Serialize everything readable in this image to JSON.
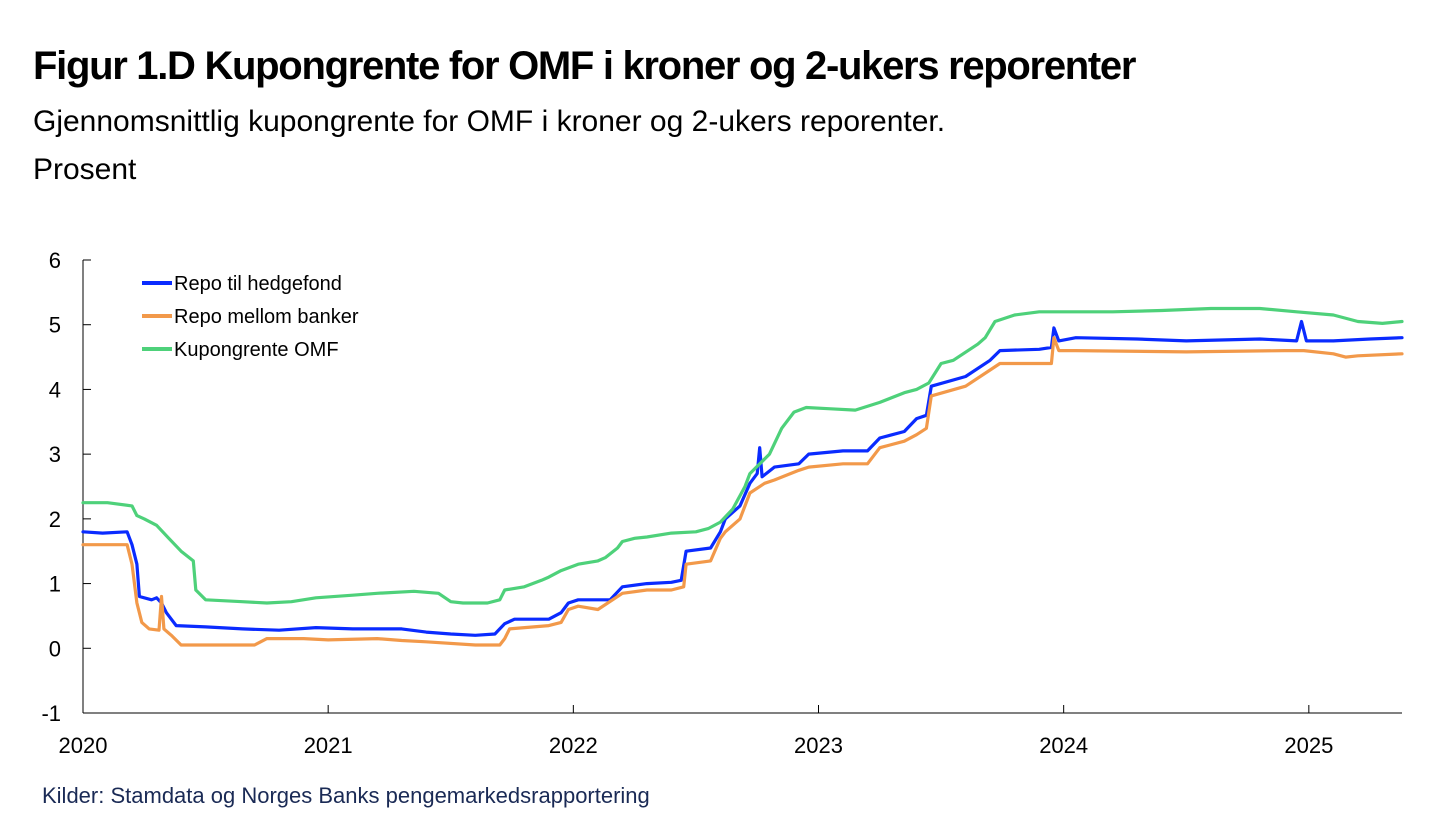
{
  "title": "Figur 1.D Kupongrente for OMF i kroner og 2-ukers reporenter",
  "subtitle_line1": "Gjennomsnittlig kupongrente for OMF i kroner og 2-ukers reporenter.",
  "subtitle_line2": "Prosent",
  "source": "Kilder: Stamdata og Norges Banks pengemarkedsrapportering",
  "chart_data": {
    "type": "line",
    "title": "Figur 1.D Kupongrente for OMF i kroner og 2-ukers reporenter",
    "xlabel": "",
    "ylabel": "Prosent",
    "xlim": [
      2020.0,
      2025.38
    ],
    "ylim": [
      -1,
      6
    ],
    "yticks": [
      "6",
      "5",
      "4",
      "3",
      "2",
      "1",
      "0",
      "-1"
    ],
    "xticks": [
      "2020",
      "2021",
      "2022",
      "2023",
      "2024",
      "2025"
    ],
    "legend": "top-left",
    "grid": false,
    "series": [
      {
        "name": "Repo til hedgefond",
        "color": "#0a2bff",
        "points": [
          [
            2020.0,
            1.8
          ],
          [
            2020.08,
            1.78
          ],
          [
            2020.18,
            1.8
          ],
          [
            2020.2,
            1.6
          ],
          [
            2020.22,
            1.3
          ],
          [
            2020.23,
            0.8
          ],
          [
            2020.28,
            0.75
          ],
          [
            2020.3,
            0.78
          ],
          [
            2020.32,
            0.7
          ],
          [
            2020.34,
            0.55
          ],
          [
            2020.36,
            0.45
          ],
          [
            2020.38,
            0.35
          ],
          [
            2020.5,
            0.33
          ],
          [
            2020.65,
            0.3
          ],
          [
            2020.8,
            0.28
          ],
          [
            2020.95,
            0.32
          ],
          [
            2021.1,
            0.3
          ],
          [
            2021.3,
            0.3
          ],
          [
            2021.4,
            0.25
          ],
          [
            2021.5,
            0.22
          ],
          [
            2021.6,
            0.2
          ],
          [
            2021.68,
            0.22
          ],
          [
            2021.72,
            0.38
          ],
          [
            2021.76,
            0.45
          ],
          [
            2021.9,
            0.45
          ],
          [
            2021.95,
            0.55
          ],
          [
            2021.98,
            0.7
          ],
          [
            2022.02,
            0.75
          ],
          [
            2022.15,
            0.75
          ],
          [
            2022.2,
            0.95
          ],
          [
            2022.3,
            1.0
          ],
          [
            2022.4,
            1.02
          ],
          [
            2022.44,
            1.05
          ],
          [
            2022.46,
            1.5
          ],
          [
            2022.56,
            1.55
          ],
          [
            2022.6,
            1.8
          ],
          [
            2022.62,
            2.0
          ],
          [
            2022.68,
            2.2
          ],
          [
            2022.72,
            2.55
          ],
          [
            2022.75,
            2.7
          ],
          [
            2022.76,
            3.1
          ],
          [
            2022.77,
            2.65
          ],
          [
            2022.82,
            2.8
          ],
          [
            2022.92,
            2.85
          ],
          [
            2022.96,
            3.0
          ],
          [
            2023.1,
            3.05
          ],
          [
            2023.2,
            3.05
          ],
          [
            2023.25,
            3.25
          ],
          [
            2023.35,
            3.35
          ],
          [
            2023.4,
            3.55
          ],
          [
            2023.44,
            3.6
          ],
          [
            2023.46,
            4.05
          ],
          [
            2023.6,
            4.2
          ],
          [
            2023.7,
            4.45
          ],
          [
            2023.74,
            4.6
          ],
          [
            2023.9,
            4.62
          ],
          [
            2023.95,
            4.65
          ],
          [
            2023.96,
            4.95
          ],
          [
            2023.98,
            4.75
          ],
          [
            2024.05,
            4.8
          ],
          [
            2024.3,
            4.78
          ],
          [
            2024.5,
            4.75
          ],
          [
            2024.8,
            4.78
          ],
          [
            2024.95,
            4.75
          ],
          [
            2024.97,
            5.05
          ],
          [
            2024.99,
            4.75
          ],
          [
            2025.1,
            4.75
          ],
          [
            2025.25,
            4.78
          ],
          [
            2025.38,
            4.8
          ]
        ]
      },
      {
        "name": "Repo mellom banker",
        "color": "#f2994a",
        "points": [
          [
            2020.0,
            1.6
          ],
          [
            2020.1,
            1.6
          ],
          [
            2020.18,
            1.6
          ],
          [
            2020.2,
            1.3
          ],
          [
            2020.22,
            0.7
          ],
          [
            2020.24,
            0.4
          ],
          [
            2020.27,
            0.3
          ],
          [
            2020.31,
            0.28
          ],
          [
            2020.32,
            0.8
          ],
          [
            2020.33,
            0.3
          ],
          [
            2020.36,
            0.2
          ],
          [
            2020.4,
            0.05
          ],
          [
            2020.6,
            0.05
          ],
          [
            2020.7,
            0.05
          ],
          [
            2020.75,
            0.15
          ],
          [
            2020.9,
            0.15
          ],
          [
            2021.0,
            0.13
          ],
          [
            2021.2,
            0.15
          ],
          [
            2021.3,
            0.12
          ],
          [
            2021.4,
            0.1
          ],
          [
            2021.6,
            0.05
          ],
          [
            2021.7,
            0.05
          ],
          [
            2021.72,
            0.15
          ],
          [
            2021.74,
            0.3
          ],
          [
            2021.9,
            0.35
          ],
          [
            2021.95,
            0.4
          ],
          [
            2021.98,
            0.6
          ],
          [
            2022.02,
            0.65
          ],
          [
            2022.1,
            0.6
          ],
          [
            2022.2,
            0.85
          ],
          [
            2022.3,
            0.9
          ],
          [
            2022.4,
            0.9
          ],
          [
            2022.45,
            0.95
          ],
          [
            2022.46,
            1.3
          ],
          [
            2022.56,
            1.35
          ],
          [
            2022.6,
            1.7
          ],
          [
            2022.62,
            1.8
          ],
          [
            2022.68,
            2.0
          ],
          [
            2022.72,
            2.4
          ],
          [
            2022.78,
            2.55
          ],
          [
            2022.82,
            2.6
          ],
          [
            2022.92,
            2.75
          ],
          [
            2022.96,
            2.8
          ],
          [
            2023.1,
            2.85
          ],
          [
            2023.2,
            2.85
          ],
          [
            2023.25,
            3.1
          ],
          [
            2023.35,
            3.2
          ],
          [
            2023.4,
            3.3
          ],
          [
            2023.44,
            3.4
          ],
          [
            2023.46,
            3.9
          ],
          [
            2023.6,
            4.05
          ],
          [
            2023.7,
            4.3
          ],
          [
            2023.74,
            4.4
          ],
          [
            2023.9,
            4.4
          ],
          [
            2023.95,
            4.4
          ],
          [
            2023.96,
            4.8
          ],
          [
            2023.98,
            4.6
          ],
          [
            2024.05,
            4.6
          ],
          [
            2024.5,
            4.58
          ],
          [
            2024.9,
            4.6
          ],
          [
            2024.98,
            4.6
          ],
          [
            2025.1,
            4.55
          ],
          [
            2025.15,
            4.5
          ],
          [
            2025.2,
            4.52
          ],
          [
            2025.38,
            4.55
          ]
        ]
      },
      {
        "name": "Kupongrente OMF",
        "color": "#4ed17a",
        "points": [
          [
            2020.0,
            2.25
          ],
          [
            2020.1,
            2.25
          ],
          [
            2020.2,
            2.2
          ],
          [
            2020.22,
            2.05
          ],
          [
            2020.25,
            2.0
          ],
          [
            2020.3,
            1.9
          ],
          [
            2020.35,
            1.7
          ],
          [
            2020.4,
            1.5
          ],
          [
            2020.45,
            1.35
          ],
          [
            2020.46,
            0.9
          ],
          [
            2020.5,
            0.75
          ],
          [
            2020.65,
            0.72
          ],
          [
            2020.75,
            0.7
          ],
          [
            2020.85,
            0.72
          ],
          [
            2020.95,
            0.78
          ],
          [
            2021.1,
            0.82
          ],
          [
            2021.2,
            0.85
          ],
          [
            2021.35,
            0.88
          ],
          [
            2021.45,
            0.85
          ],
          [
            2021.5,
            0.72
          ],
          [
            2021.55,
            0.7
          ],
          [
            2021.65,
            0.7
          ],
          [
            2021.7,
            0.75
          ],
          [
            2021.72,
            0.9
          ],
          [
            2021.8,
            0.95
          ],
          [
            2021.87,
            1.05
          ],
          [
            2021.9,
            1.1
          ],
          [
            2021.95,
            1.2
          ],
          [
            2022.02,
            1.3
          ],
          [
            2022.1,
            1.35
          ],
          [
            2022.13,
            1.4
          ],
          [
            2022.18,
            1.55
          ],
          [
            2022.2,
            1.65
          ],
          [
            2022.25,
            1.7
          ],
          [
            2022.3,
            1.72
          ],
          [
            2022.4,
            1.78
          ],
          [
            2022.5,
            1.8
          ],
          [
            2022.55,
            1.85
          ],
          [
            2022.6,
            1.95
          ],
          [
            2022.65,
            2.15
          ],
          [
            2022.7,
            2.5
          ],
          [
            2022.72,
            2.7
          ],
          [
            2022.8,
            3.0
          ],
          [
            2022.85,
            3.4
          ],
          [
            2022.9,
            3.65
          ],
          [
            2022.95,
            3.72
          ],
          [
            2023.05,
            3.7
          ],
          [
            2023.15,
            3.68
          ],
          [
            2023.25,
            3.8
          ],
          [
            2023.35,
            3.95
          ],
          [
            2023.4,
            4.0
          ],
          [
            2023.45,
            4.1
          ],
          [
            2023.5,
            4.4
          ],
          [
            2023.55,
            4.45
          ],
          [
            2023.65,
            4.7
          ],
          [
            2023.68,
            4.8
          ],
          [
            2023.72,
            5.05
          ],
          [
            2023.8,
            5.15
          ],
          [
            2023.9,
            5.2
          ],
          [
            2024.0,
            5.2
          ],
          [
            2024.2,
            5.2
          ],
          [
            2024.4,
            5.22
          ],
          [
            2024.6,
            5.25
          ],
          [
            2024.8,
            5.25
          ],
          [
            2024.95,
            5.2
          ],
          [
            2025.1,
            5.15
          ],
          [
            2025.2,
            5.05
          ],
          [
            2025.3,
            5.02
          ],
          [
            2025.38,
            5.05
          ]
        ]
      }
    ]
  }
}
